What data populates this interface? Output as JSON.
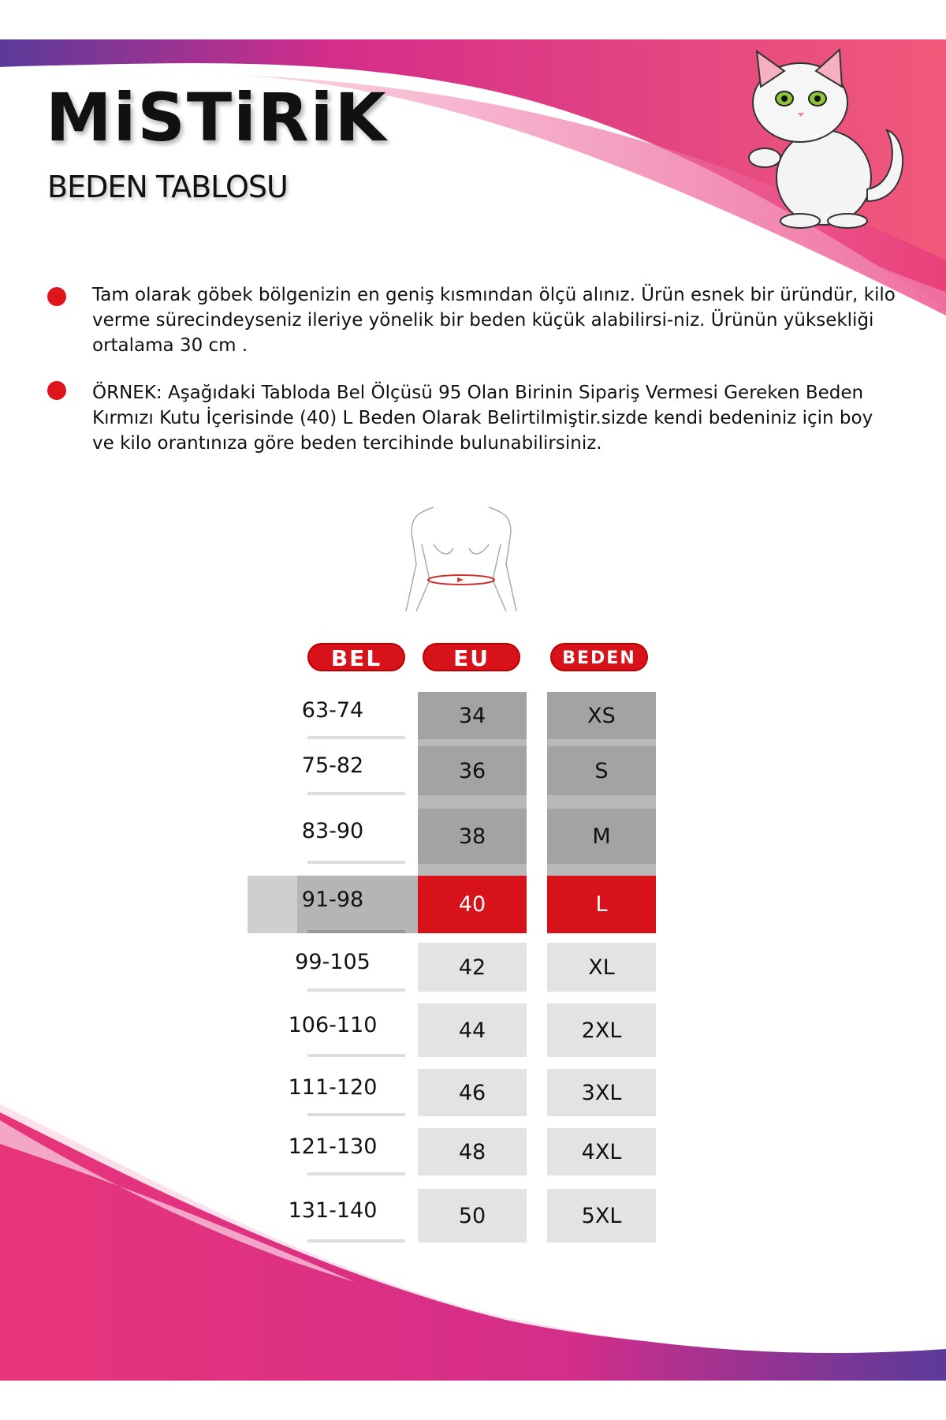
{
  "header": {
    "brand": "MiSTiRiK",
    "subtitle": "BEDEN TABLOSU"
  },
  "notes": [
    "Tam olarak göbek bölgenizin en geniş kısmından ölçü alınız. Ürün esnek bir üründür, kilo verme sürecindeyseniz ileriye yönelik bir beden küçük alabilirsi-niz. Ürünün yüksekliği ortalama 30 cm .",
    "ÖRNEK: Aşağıdaki Tabloda Bel Ölçüsü 95 Olan Birinin Sipariş Vermesi Gereken Beden Kırmızı Kutu İçerisinde (40) L Beden Olarak Belirtilmiştir.sizde kendi bedeniniz için boy ve kilo orantınıza göre beden tercihinde bulunabilirsiniz."
  ],
  "table": {
    "headers": [
      "BEL",
      "EU",
      "BEDEN"
    ],
    "rows": [
      {
        "bel": "63-74",
        "eu": "34",
        "beden": "XS"
      },
      {
        "bel": "75-82",
        "eu": "36",
        "beden": "S"
      },
      {
        "bel": "83-90",
        "eu": "38",
        "beden": "M"
      },
      {
        "bel": "91-98",
        "eu": "40",
        "beden": "L"
      },
      {
        "bel": "99-105",
        "eu": "42",
        "beden": "XL"
      },
      {
        "bel": "106-110",
        "eu": "44",
        "beden": "2XL"
      },
      {
        "bel": "111-120",
        "eu": "46",
        "beden": "3XL"
      },
      {
        "bel": "121-130",
        "eu": "48",
        "beden": "4XL"
      },
      {
        "bel": "131-140",
        "eu": "50",
        "beden": "5XL"
      }
    ],
    "highlighted_row": "91-98"
  },
  "colors": {
    "accent": "#d8121b",
    "pink": "#e8357a",
    "purple": "#6a3aa0"
  }
}
